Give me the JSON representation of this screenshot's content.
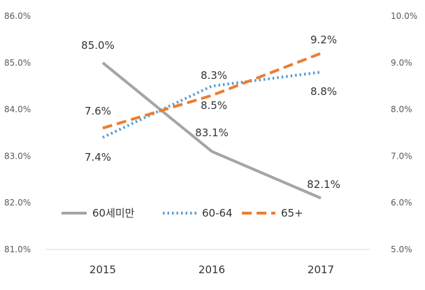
{
  "chart_data": {
    "type": "line",
    "title": "",
    "x": [
      "2015",
      "2016",
      "2017"
    ],
    "y_left": {
      "min": 81.0,
      "max": 86.0,
      "step": 1.0,
      "ticks": [
        "81.0%",
        "82.0%",
        "83.0%",
        "84.0%",
        "85.0%",
        "86.0%"
      ]
    },
    "y_right": {
      "min": 5.0,
      "max": 10.0,
      "step": 1.0,
      "ticks": [
        "5.0%",
        "6.0%",
        "7.0%",
        "8.0%",
        "9.0%",
        "10.0%"
      ]
    },
    "grid": false,
    "legend_position": "bottom-left",
    "series": [
      {
        "name": "60세미만",
        "axis": "left",
        "style": "solid",
        "color": "#a5a5a5",
        "values": [
          85.0,
          83.1,
          82.1
        ],
        "labels": [
          "85.0%",
          "83.1%",
          "82.1%"
        ]
      },
      {
        "name": "60-64",
        "axis": "right",
        "style": "dotted",
        "color": "#5b9bd5",
        "values": [
          7.4,
          8.5,
          8.8
        ],
        "labels": [
          "7.4%",
          "8.5%",
          "8.8%"
        ]
      },
      {
        "name": "65+",
        "axis": "right",
        "style": "dashed",
        "color": "#ed7d31",
        "values": [
          7.6,
          8.3,
          9.2
        ],
        "labels": [
          "7.6%",
          "8.3%",
          "9.2%"
        ]
      }
    ]
  }
}
